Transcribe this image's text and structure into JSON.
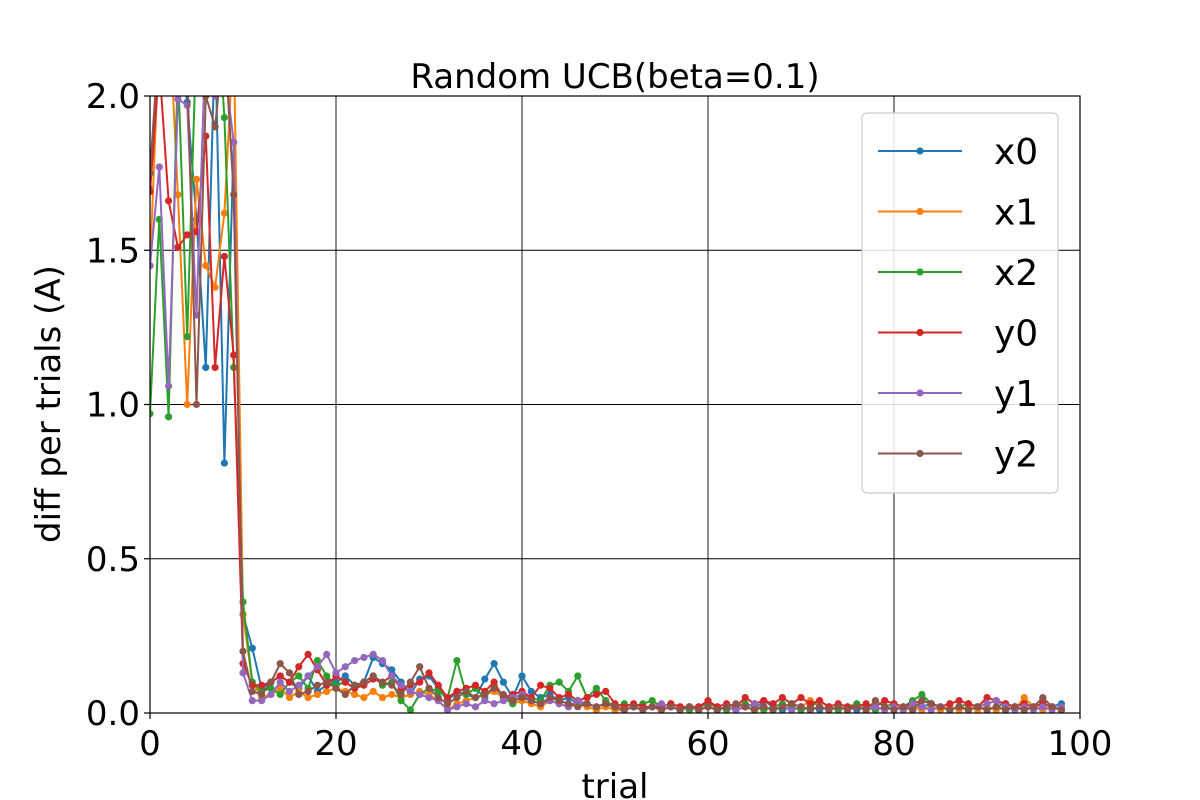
{
  "chart_data": {
    "type": "line",
    "title": "Random UCB(beta=0.1)",
    "xlabel": "trial",
    "ylabel": "diff  per  trials (A)",
    "xlim": [
      0,
      100
    ],
    "ylim": [
      0,
      2.0
    ],
    "xticks": [
      "0",
      "20",
      "40",
      "60",
      "80",
      "100"
    ],
    "yticks": [
      "0.0",
      "0.5",
      "1.0",
      "1.5",
      "2.0"
    ],
    "grid": true,
    "legend_position": "upper-right",
    "series": [
      {
        "name": "x0",
        "color": "#1f77b4",
        "values": [
          1.7,
          2.2,
          2.4,
          2.2,
          1.98,
          1.6,
          1.12,
          2.2,
          0.81,
          1.85,
          0.32,
          0.21,
          0.08,
          0.1,
          0.12,
          0.1,
          0.08,
          0.12,
          0.07,
          0.09,
          0.1,
          0.12,
          0.09,
          0.1,
          0.18,
          0.16,
          0.14,
          0.1,
          0.06,
          0.11,
          0.12,
          0.08,
          0.04,
          0.07,
          0.06,
          0.05,
          0.11,
          0.16,
          0.1,
          0.05,
          0.12,
          0.07,
          0.05,
          0.06,
          0.04,
          0.05,
          0.03,
          0.03,
          0.02,
          0.03,
          0.02,
          0.01,
          0.02,
          0.01,
          0.02,
          0.01,
          0.02,
          0.01,
          0.02,
          0.01,
          0.02,
          0.01,
          0.02,
          0.01,
          0.02,
          0.01,
          0.04,
          0.02,
          0.01,
          0.02,
          0.01,
          0.02,
          0.01,
          0.02,
          0.01,
          0.02,
          0.01,
          0.02,
          0.01,
          0.02,
          0.01,
          0.02,
          0.01,
          0.02,
          0.03,
          0.02,
          0.01,
          0.02,
          0.01,
          0.02,
          0.01,
          0.02,
          0.01,
          0.02,
          0.01,
          0.02,
          0.01,
          0.02,
          0.03
        ]
      },
      {
        "name": "x1",
        "color": "#ff7f0e",
        "values": [
          1.45,
          2.2,
          2.3,
          1.68,
          1.0,
          1.73,
          1.45,
          1.38,
          1.62,
          2.2,
          0.32,
          0.1,
          0.05,
          0.06,
          0.08,
          0.05,
          0.07,
          0.05,
          0.06,
          0.07,
          0.08,
          0.07,
          0.06,
          0.05,
          0.07,
          0.05,
          0.06,
          0.05,
          0.06,
          0.07,
          0.06,
          0.04,
          0.01,
          0.03,
          0.04,
          0.05,
          0.06,
          0.07,
          0.05,
          0.03,
          0.04,
          0.03,
          0.02,
          0.04,
          0.03,
          0.02,
          0.03,
          0.02,
          0.01,
          0.02,
          0.01,
          0.01,
          0.02,
          0.01,
          0.02,
          0.01,
          0.02,
          0.01,
          0.02,
          0.01,
          0.02,
          0.01,
          0.02,
          0.01,
          0.02,
          0.01,
          0.02,
          0.01,
          0.02,
          0.01,
          0.02,
          0.04,
          0.02,
          0.01,
          0.02,
          0.01,
          0.02,
          0.01,
          0.02,
          0.01,
          0.02,
          0.01,
          0.02,
          0.01,
          0.02,
          0.01,
          0.02,
          0.01,
          0.02,
          0.01,
          0.02,
          0.01,
          0.02,
          0.01,
          0.05,
          0.02,
          0.01,
          0.02,
          0.01
        ]
      },
      {
        "name": "x2",
        "color": "#2ca02c",
        "values": [
          0.97,
          1.6,
          0.96,
          2.1,
          1.22,
          2.2,
          2.3,
          2.4,
          1.93,
          1.12,
          0.36,
          0.1,
          0.07,
          0.08,
          0.06,
          0.1,
          0.12,
          0.08,
          0.17,
          0.12,
          0.09,
          0.1,
          0.08,
          0.1,
          0.12,
          0.09,
          0.1,
          0.04,
          0.01,
          0.06,
          0.08,
          0.07,
          0.05,
          0.17,
          0.06,
          0.08,
          0.05,
          0.09,
          0.05,
          0.03,
          0.06,
          0.05,
          0.04,
          0.09,
          0.1,
          0.07,
          0.12,
          0.05,
          0.08,
          0.04,
          0.02,
          0.03,
          0.02,
          0.03,
          0.04,
          0.02,
          0.03,
          0.02,
          0.01,
          0.02,
          0.03,
          0.02,
          0.01,
          0.02,
          0.03,
          0.02,
          0.01,
          0.02,
          0.03,
          0.02,
          0.01,
          0.02,
          0.04,
          0.02,
          0.01,
          0.02,
          0.03,
          0.02,
          0.01,
          0.02,
          0.03,
          0.02,
          0.04,
          0.06,
          0.03,
          0.02,
          0.01,
          0.02,
          0.03,
          0.02,
          0.01,
          0.02,
          0.03,
          0.02,
          0.01,
          0.02,
          0.03,
          0.02,
          0.01
        ]
      },
      {
        "name": "y0",
        "color": "#d62728",
        "values": [
          1.69,
          2.1,
          1.66,
          1.51,
          1.55,
          1.56,
          1.87,
          1.12,
          1.48,
          1.16,
          0.16,
          0.09,
          0.09,
          0.1,
          0.12,
          0.1,
          0.15,
          0.19,
          0.14,
          0.09,
          0.12,
          0.1,
          0.08,
          0.09,
          0.11,
          0.1,
          0.12,
          0.08,
          0.09,
          0.1,
          0.13,
          0.09,
          0.05,
          0.07,
          0.08,
          0.09,
          0.07,
          0.1,
          0.05,
          0.06,
          0.07,
          0.05,
          0.09,
          0.08,
          0.05,
          0.06,
          0.04,
          0.05,
          0.06,
          0.07,
          0.03,
          0.02,
          0.03,
          0.02,
          0.02,
          0.02,
          0.03,
          0.02,
          0.02,
          0.02,
          0.04,
          0.02,
          0.03,
          0.02,
          0.05,
          0.03,
          0.04,
          0.03,
          0.05,
          0.03,
          0.05,
          0.03,
          0.04,
          0.02,
          0.03,
          0.02,
          0.02,
          0.03,
          0.02,
          0.04,
          0.03,
          0.02,
          0.03,
          0.04,
          0.03,
          0.02,
          0.03,
          0.04,
          0.03,
          0.02,
          0.05,
          0.04,
          0.03,
          0.02,
          0.03,
          0.02,
          0.03,
          0.02,
          0.01
        ]
      },
      {
        "name": "y1",
        "color": "#9467bd",
        "values": [
          1.45,
          1.77,
          1.06,
          1.99,
          1.97,
          1.29,
          2.2,
          2.0,
          2.1,
          1.85,
          0.13,
          0.04,
          0.04,
          0.06,
          0.1,
          0.07,
          0.09,
          0.12,
          0.15,
          0.19,
          0.13,
          0.15,
          0.17,
          0.18,
          0.19,
          0.17,
          0.12,
          0.09,
          0.07,
          0.06,
          0.05,
          0.04,
          0.01,
          0.02,
          0.03,
          0.02,
          0.04,
          0.03,
          0.04,
          0.05,
          0.06,
          0.04,
          0.03,
          0.04,
          0.03,
          0.02,
          0.04,
          0.03,
          0.02,
          0.03,
          0.02,
          0.01,
          0.02,
          0.01,
          0.02,
          0.03,
          0.02,
          0.01,
          0.02,
          0.01,
          0.02,
          0.01,
          0.02,
          0.01,
          0.02,
          0.03,
          0.02,
          0.01,
          0.02,
          0.01,
          0.02,
          0.01,
          0.02,
          0.01,
          0.02,
          0.01,
          0.02,
          0.01,
          0.02,
          0.01,
          0.02,
          0.01,
          0.03,
          0.02,
          0.01,
          0.02,
          0.01,
          0.02,
          0.01,
          0.02,
          0.03,
          0.04,
          0.02,
          0.01,
          0.02,
          0.01,
          0.02,
          0.01,
          0.02
        ]
      },
      {
        "name": "y2",
        "color": "#8c564b",
        "values": [
          1.75,
          2.2,
          2.1,
          2.3,
          2.1,
          1.0,
          2.0,
          1.9,
          2.2,
          1.68,
          0.2,
          0.07,
          0.06,
          0.1,
          0.16,
          0.13,
          0.06,
          0.07,
          0.09,
          0.1,
          0.08,
          0.06,
          0.09,
          0.1,
          0.12,
          0.1,
          0.09,
          0.06,
          0.1,
          0.15,
          0.08,
          0.05,
          0.03,
          0.05,
          0.07,
          0.05,
          0.06,
          0.08,
          0.06,
          0.04,
          0.05,
          0.04,
          0.03,
          0.05,
          0.04,
          0.03,
          0.02,
          0.03,
          0.02,
          0.03,
          0.02,
          0.01,
          0.02,
          0.01,
          0.02,
          0.01,
          0.02,
          0.01,
          0.02,
          0.01,
          0.02,
          0.01,
          0.02,
          0.03,
          0.02,
          0.01,
          0.02,
          0.01,
          0.02,
          0.03,
          0.02,
          0.01,
          0.02,
          0.01,
          0.02,
          0.01,
          0.02,
          0.01,
          0.04,
          0.02,
          0.01,
          0.02,
          0.01,
          0.04,
          0.03,
          0.02,
          0.01,
          0.02,
          0.01,
          0.02,
          0.01,
          0.02,
          0.01,
          0.02,
          0.01,
          0.02,
          0.05,
          0.02,
          0.01
        ]
      }
    ]
  }
}
